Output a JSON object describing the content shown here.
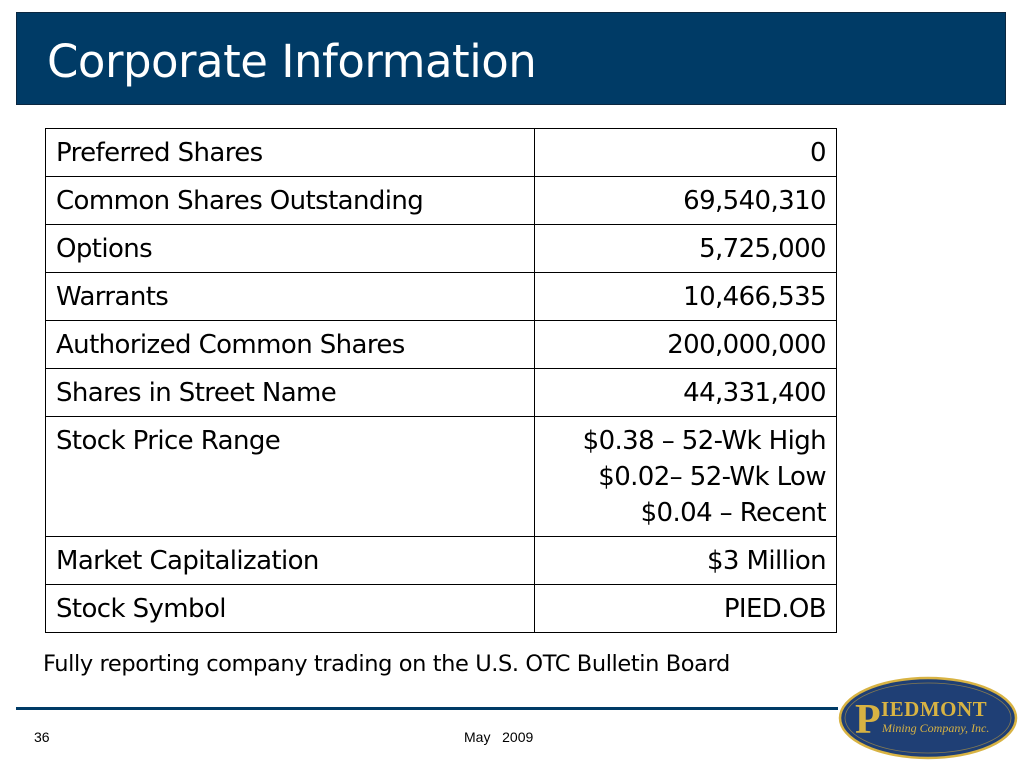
{
  "slide": {
    "title": "Corporate Information",
    "rows": [
      {
        "label": "Preferred Shares",
        "value": "0"
      },
      {
        "label": "Common Shares Outstanding",
        "value": "69,540,310"
      },
      {
        "label": "Options",
        "value": "5,725,000"
      },
      {
        "label": "Warrants",
        "value": "10,466,535"
      },
      {
        "label": "Authorized Common Shares",
        "value": "200,000,000"
      },
      {
        "label": "Shares in Street Name",
        "value": "44,331,400"
      },
      {
        "label": "Stock Price Range",
        "value_lines": [
          "$0.38 – 52-Wk High",
          "$0.02– 52-Wk Low",
          "$0.04 – Recent"
        ]
      },
      {
        "label": "Market Capitalization",
        "value": "$3 Million"
      },
      {
        "label": "Stock Symbol",
        "value": "PIED.OB"
      }
    ],
    "footnote": "Fully reporting company trading on the U.S. OTC Bulletin Board"
  },
  "footer": {
    "page_number": "36",
    "date": "May   2009"
  },
  "logo": {
    "initial": "P",
    "name": "IEDMONT",
    "subtitle": "Mining Company, Inc."
  },
  "colors": {
    "title_bar": "#003b66",
    "logo_fill": "#1f3f75",
    "logo_text": "#d8b343"
  }
}
